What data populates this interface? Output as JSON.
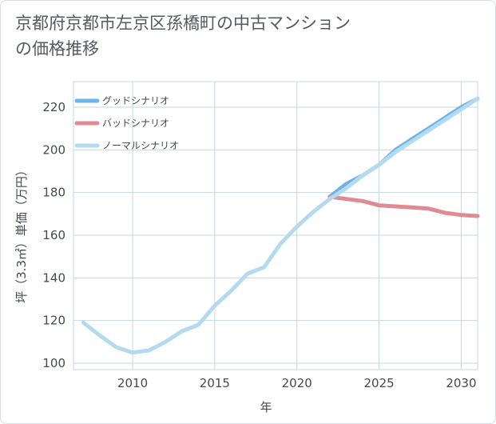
{
  "title": "京都府京都市左京区孫橋町の中古マンションの価格推移",
  "chart_data": {
    "type": "line",
    "title": "京都府京都市左京区孫橋町の中古マンションの価格推移",
    "xlabel": "年",
    "ylabel": "坪（3.3㎡）単価（万円）",
    "xlim": [
      2006.4,
      2031
    ],
    "ylim": [
      97,
      232
    ],
    "x_ticks": [
      2010,
      2015,
      2020,
      2025,
      2030
    ],
    "y_ticks": [
      100,
      120,
      140,
      160,
      180,
      200,
      220
    ],
    "grid": true,
    "legend_position": "top-left",
    "series": [
      {
        "name": "グッドシナリオ",
        "color": "#6ab4e8",
        "x": [
          2022,
          2023,
          2024,
          2025,
          2026,
          2027,
          2028,
          2029,
          2030,
          2031
        ],
        "y": [
          178,
          184,
          188,
          193,
          200,
          205,
          210,
          215,
          220,
          224
        ]
      },
      {
        "name": "バッドシナリオ",
        "color": "#e08a94",
        "x": [
          2022,
          2023,
          2024,
          2025,
          2026,
          2027,
          2028,
          2029,
          2030,
          2031
        ],
        "y": [
          178,
          177,
          176,
          174,
          173.5,
          173,
          172.5,
          170.5,
          169.5,
          169
        ]
      },
      {
        "name": "ノーマルシナリオ",
        "color": "#b5daf0",
        "x": [
          2007,
          2008,
          2009,
          2010,
          2011,
          2012,
          2013,
          2014,
          2015,
          2016,
          2017,
          2018,
          2019,
          2020,
          2021,
          2022,
          2023,
          2024,
          2025,
          2026,
          2027,
          2028,
          2029,
          2030,
          2031
        ],
        "y": [
          119,
          113,
          107.5,
          105,
          106,
          110,
          115,
          118,
          127,
          134,
          142,
          145,
          156,
          164,
          171,
          177,
          182,
          188,
          193,
          199,
          204,
          209,
          214,
          219,
          224
        ]
      }
    ]
  }
}
